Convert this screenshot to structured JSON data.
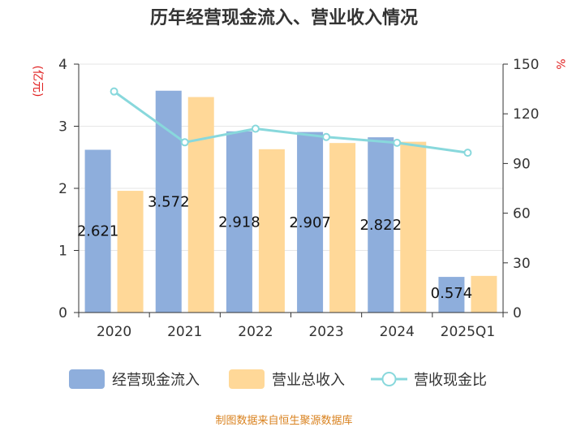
{
  "chart_data": {
    "type": "bar",
    "title": "历年经营现金流入、营业收入情况",
    "categories": [
      "2020",
      "2021",
      "2022",
      "2023",
      "2024",
      "2025Q1"
    ],
    "y_left": {
      "label": "(亿元)",
      "range": [
        0,
        4
      ],
      "ticks": [
        "0",
        "1",
        "2",
        "3",
        "4"
      ]
    },
    "y_right": {
      "label": "%",
      "range": [
        0,
        150
      ],
      "ticks": [
        "0",
        "30",
        "60",
        "90",
        "120",
        "150"
      ]
    },
    "series": [
      {
        "name": "经营现金流入",
        "type": "bar",
        "axis": "left",
        "color": "#8eaedc",
        "values": [
          2.621,
          3.572,
          2.918,
          2.907,
          2.822,
          0.574
        ],
        "labels": [
          "2.621",
          "3.572",
          "2.918",
          "2.907",
          "2.822",
          "0.574"
        ]
      },
      {
        "name": "营业总收入",
        "type": "bar",
        "axis": "left",
        "color": "#ffd898",
        "values": [
          1.96,
          3.47,
          2.63,
          2.73,
          2.75,
          0.59
        ]
      },
      {
        "name": "营收现金比",
        "type": "line",
        "axis": "right",
        "color": "#88d8dc",
        "values": [
          133.5,
          102.8,
          111.0,
          106.0,
          102.5,
          96.5
        ]
      }
    ],
    "legend_position": "bottom",
    "grid": true
  },
  "footer": {
    "source": "制图数据来自恒生聚源数据库"
  }
}
